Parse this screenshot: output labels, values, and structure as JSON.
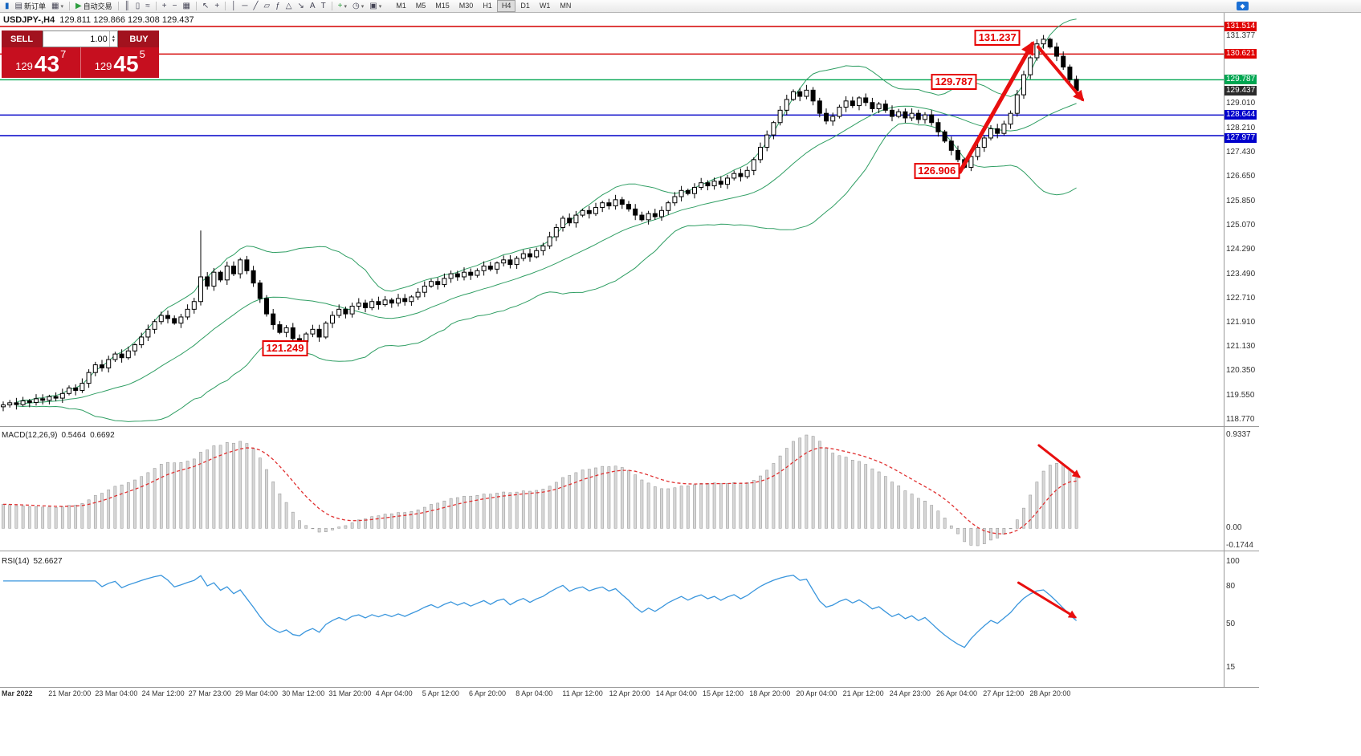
{
  "toolbar": {
    "caret_icon": "▾",
    "groups": [
      {
        "items": [
          {
            "name": "charts-grip-button",
            "icon": "▮",
            "color": "#1565c0"
          },
          {
            "name": "new-order-button",
            "icon": "▤",
            "label": "新订单"
          },
          {
            "name": "chart-window-button",
            "icon": "▦",
            "caret": true
          }
        ]
      },
      {
        "items": [
          {
            "name": "auto-trading-button",
            "icon": "▶",
            "color": "#2e9e3f",
            "label": "自动交易"
          }
        ]
      },
      {
        "items": [
          {
            "name": "bar-chart-button",
            "icon": "║"
          },
          {
            "name": "candlestick-chart-button",
            "icon": "▯"
          },
          {
            "name": "line-chart-button",
            "icon": "≈"
          }
        ]
      },
      {
        "items": [
          {
            "name": "zoom-in-button",
            "icon": "+"
          },
          {
            "name": "zoom-out-button",
            "icon": "−"
          },
          {
            "name": "tile-windows-button",
            "icon": "▦"
          }
        ]
      },
      {
        "items": [
          {
            "name": "cursor-button",
            "icon": "↖"
          },
          {
            "name": "crosshair-button",
            "icon": "+"
          }
        ]
      },
      {
        "items": [
          {
            "name": "vertical-line-button",
            "icon": "│"
          },
          {
            "name": "horizontal-line-button",
            "icon": "─"
          },
          {
            "name": "trendline-button",
            "icon": "╱"
          },
          {
            "name": "equidistant-channel-button",
            "icon": "▱"
          },
          {
            "name": "fibonacci-button",
            "icon": "ƒ"
          },
          {
            "name": "shapes-button",
            "icon": "△"
          },
          {
            "name": "arrow-tool-button",
            "icon": "↘"
          },
          {
            "name": "text-button",
            "icon": "A"
          },
          {
            "name": "text-label-button",
            "icon": "T"
          }
        ]
      },
      {
        "items": [
          {
            "name": "indicators-button",
            "icon": "+",
            "color": "#2e9e3f",
            "caret": true
          },
          {
            "name": "period-button",
            "icon": "◷",
            "caret": true
          },
          {
            "name": "template-button",
            "icon": "▣",
            "caret": true
          }
        ]
      }
    ],
    "timeframes": [
      "M1",
      "M5",
      "M15",
      "M30",
      "H1",
      "H4",
      "D1",
      "W1",
      "MN"
    ],
    "active_timeframe": "H4"
  },
  "symbol_header": {
    "symbol": "USDJPY-,H4",
    "ohlc": "129.811 129.866 129.308 129.437"
  },
  "trade_panel": {
    "sell_label": "SELL",
    "buy_label": "BUY",
    "volume": "1.00",
    "volume_up_icon": "▲",
    "volume_down_icon": "▼",
    "sell_price_big": "129",
    "sell_price_pips": "43",
    "sell_price_sup": "7",
    "buy_price_big": "129",
    "buy_price_pips": "45",
    "buy_price_sup": "5"
  },
  "colors": {
    "band": "#2f9e63",
    "hline_red": "#d40000",
    "hline_green": "#00a651",
    "hline_blue": "#0000c8",
    "signal": "#e03030",
    "rsi_line": "#3a96dd",
    "arrow": "#e80f0f",
    "hist_fill": "#d7d7d7",
    "hist_stroke": "#909090"
  },
  "price_scale": [
    {
      "text": "131.514",
      "price": 131.514,
      "type": "red"
    },
    {
      "text": "131.377",
      "price": 131.377,
      "type": "plain"
    },
    {
      "text": "130.621",
      "price": 130.621,
      "type": "red"
    },
    {
      "text": "129.787",
      "price": 129.787,
      "type": "green"
    },
    {
      "text": "129.437",
      "price": 129.437,
      "type": "current"
    },
    {
      "text": "129.010",
      "price": 129.01,
      "type": "plain"
    },
    {
      "text": "128.644",
      "price": 128.644,
      "type": "blue"
    },
    {
      "text": "128.210",
      "price": 128.21,
      "type": "plain"
    },
    {
      "text": "127.977",
      "price": 127.977,
      "type": "blue"
    },
    {
      "text": "127.430",
      "price": 127.43,
      "type": "plain"
    },
    {
      "text": "126.650",
      "price": 126.65,
      "type": "plain"
    },
    {
      "text": "125.850",
      "price": 125.85,
      "type": "plain"
    },
    {
      "text": "125.070",
      "price": 125.07,
      "type": "plain"
    },
    {
      "text": "124.290",
      "price": 124.29,
      "type": "plain"
    },
    {
      "text": "123.490",
      "price": 123.49,
      "type": "plain"
    },
    {
      "text": "122.710",
      "price": 122.71,
      "type": "plain"
    },
    {
      "text": "121.910",
      "price": 121.91,
      "type": "plain"
    },
    {
      "text": "121.130",
      "price": 121.13,
      "type": "plain"
    },
    {
      "text": "120.350",
      "price": 120.35,
      "type": "plain"
    },
    {
      "text": "119.550",
      "price": 119.55,
      "type": "plain"
    },
    {
      "text": "118.770",
      "price": 118.77,
      "type": "plain"
    }
  ],
  "macd_panel": {
    "title": "MACD(12,26,9)",
    "value_main": "0.5464",
    "value_signal": "0.6692",
    "scale": [
      {
        "text": "0.9337",
        "v": 0.9337
      },
      {
        "text": "0.00",
        "v": 0.0
      },
      {
        "text": "-0.1744",
        "v": -0.1744
      }
    ]
  },
  "rsi_panel": {
    "title": "RSI(14)",
    "value": "52.6627",
    "scale": [
      {
        "text": "100",
        "v": 100
      },
      {
        "text": "80",
        "v": 80
      },
      {
        "text": "50",
        "v": 50
      },
      {
        "text": "15",
        "v": 15
      }
    ]
  },
  "time_axis": [
    "Mar 2022",
    "21 Mar 20:00",
    "23 Mar 04:00",
    "24 Mar 12:00",
    "27 Mar 23:00",
    "29 Mar 04:00",
    "30 Mar 12:00",
    "31 Mar 20:00",
    "4 Apr 04:00",
    "5 Apr 12:00",
    "6 Apr 20:00",
    "8 Apr 04:00",
    "11 Apr 12:00",
    "12 Apr 20:00",
    "14 Apr 04:00",
    "15 Apr 12:00",
    "18 Apr 20:00",
    "20 Apr 04:00",
    "21 Apr 12:00",
    "24 Apr 23:00",
    "26 Apr 04:00",
    "27 Apr 12:00",
    "28 Apr 20:00"
  ],
  "chart_data": {
    "type": "candlestick",
    "symbol": "USDJPY",
    "timeframe": "H4",
    "title": "USDJPY H4 with Bollinger Bands, MACD(12,26,9), RSI(14)",
    "ylim": [
      118.562,
      131.956
    ],
    "closes": [
      119.25,
      119.32,
      119.26,
      119.38,
      119.33,
      119.45,
      119.4,
      119.52,
      119.47,
      119.62,
      119.8,
      119.72,
      119.95,
      120.3,
      120.55,
      120.45,
      120.72,
      120.9,
      120.78,
      121.0,
      121.2,
      121.45,
      121.7,
      121.95,
      122.15,
      122.05,
      121.9,
      122.1,
      122.35,
      122.6,
      123.4,
      123.1,
      123.55,
      123.3,
      123.75,
      123.5,
      123.95,
      123.6,
      123.2,
      122.7,
      122.2,
      121.85,
      121.6,
      121.75,
      121.4,
      121.3,
      121.55,
      121.7,
      121.45,
      121.9,
      122.15,
      122.35,
      122.2,
      122.45,
      122.55,
      122.4,
      122.6,
      122.5,
      122.65,
      122.55,
      122.7,
      122.6,
      122.75,
      122.9,
      123.1,
      123.25,
      123.15,
      123.35,
      123.5,
      123.4,
      123.55,
      123.45,
      123.6,
      123.75,
      123.65,
      123.85,
      123.95,
      123.8,
      124.0,
      124.15,
      124.05,
      124.25,
      124.4,
      124.7,
      125.0,
      125.3,
      125.15,
      125.4,
      125.55,
      125.45,
      125.65,
      125.8,
      125.7,
      125.9,
      125.75,
      125.6,
      125.4,
      125.25,
      125.45,
      125.35,
      125.55,
      125.8,
      126.0,
      126.2,
      126.1,
      126.3,
      126.45,
      126.35,
      126.5,
      126.4,
      126.6,
      126.75,
      126.65,
      126.85,
      127.2,
      127.6,
      128.0,
      128.4,
      128.8,
      129.15,
      129.4,
      129.25,
      129.45,
      129.1,
      128.7,
      128.45,
      128.6,
      128.9,
      129.1,
      128.95,
      129.2,
      129.05,
      128.85,
      129.0,
      128.8,
      128.6,
      128.75,
      128.55,
      128.7,
      128.5,
      128.65,
      128.4,
      128.1,
      127.8,
      127.5,
      127.2,
      126.95,
      127.3,
      127.6,
      127.9,
      128.2,
      128.05,
      128.35,
      128.7,
      129.3,
      129.95,
      130.5,
      130.95,
      131.1,
      130.85,
      130.55,
      130.2,
      129.8,
      129.44
    ],
    "wick_overrides": [
      {
        "i": 30,
        "high": 124.9
      },
      {
        "i": 122,
        "high": 129.62
      },
      {
        "i": 146,
        "low": 126.906
      },
      {
        "i": 158,
        "high": 131.237
      }
    ],
    "bollinger": {
      "period": 20,
      "deviation": 2
    },
    "macd": {
      "fast": 12,
      "slow": 26,
      "signal": 9
    },
    "rsi": {
      "period": 14
    },
    "hlines": [
      {
        "price": 131.514,
        "color": "#d40000"
      },
      {
        "price": 130.621,
        "color": "#d40000"
      },
      {
        "price": 129.787,
        "color": "#00a651"
      },
      {
        "price": 128.644,
        "color": "#0000c8"
      },
      {
        "price": 127.977,
        "color": "#0000c8"
      }
    ],
    "current_price": 129.437,
    "annotations": [
      {
        "text": "131.237",
        "i": 151.0,
        "price": 131.16
      },
      {
        "text": "129.787",
        "i": 144.4,
        "price": 129.73
      },
      {
        "text": "126.906",
        "i": 141.8,
        "price": 126.84
      },
      {
        "text": "121.249",
        "i": 42.8,
        "price": 121.09
      }
    ],
    "arrows": [
      {
        "panel": "price",
        "i1": 145.3,
        "v1": 126.8,
        "i2": 156.3,
        "v2": 130.95,
        "w": 5
      },
      {
        "panel": "price",
        "i1": 157.2,
        "v1": 130.85,
        "i2": 163.9,
        "v2": 129.15,
        "w": 4
      },
      {
        "panel": "macd",
        "i1": 157.3,
        "v1": 0.83,
        "i2": 163.4,
        "v2": 0.516,
        "w": 3
      },
      {
        "panel": "rsi",
        "i1": 154.2,
        "v1": 83.2,
        "i2": 162.8,
        "v2": 55.5,
        "w": 3
      }
    ]
  }
}
